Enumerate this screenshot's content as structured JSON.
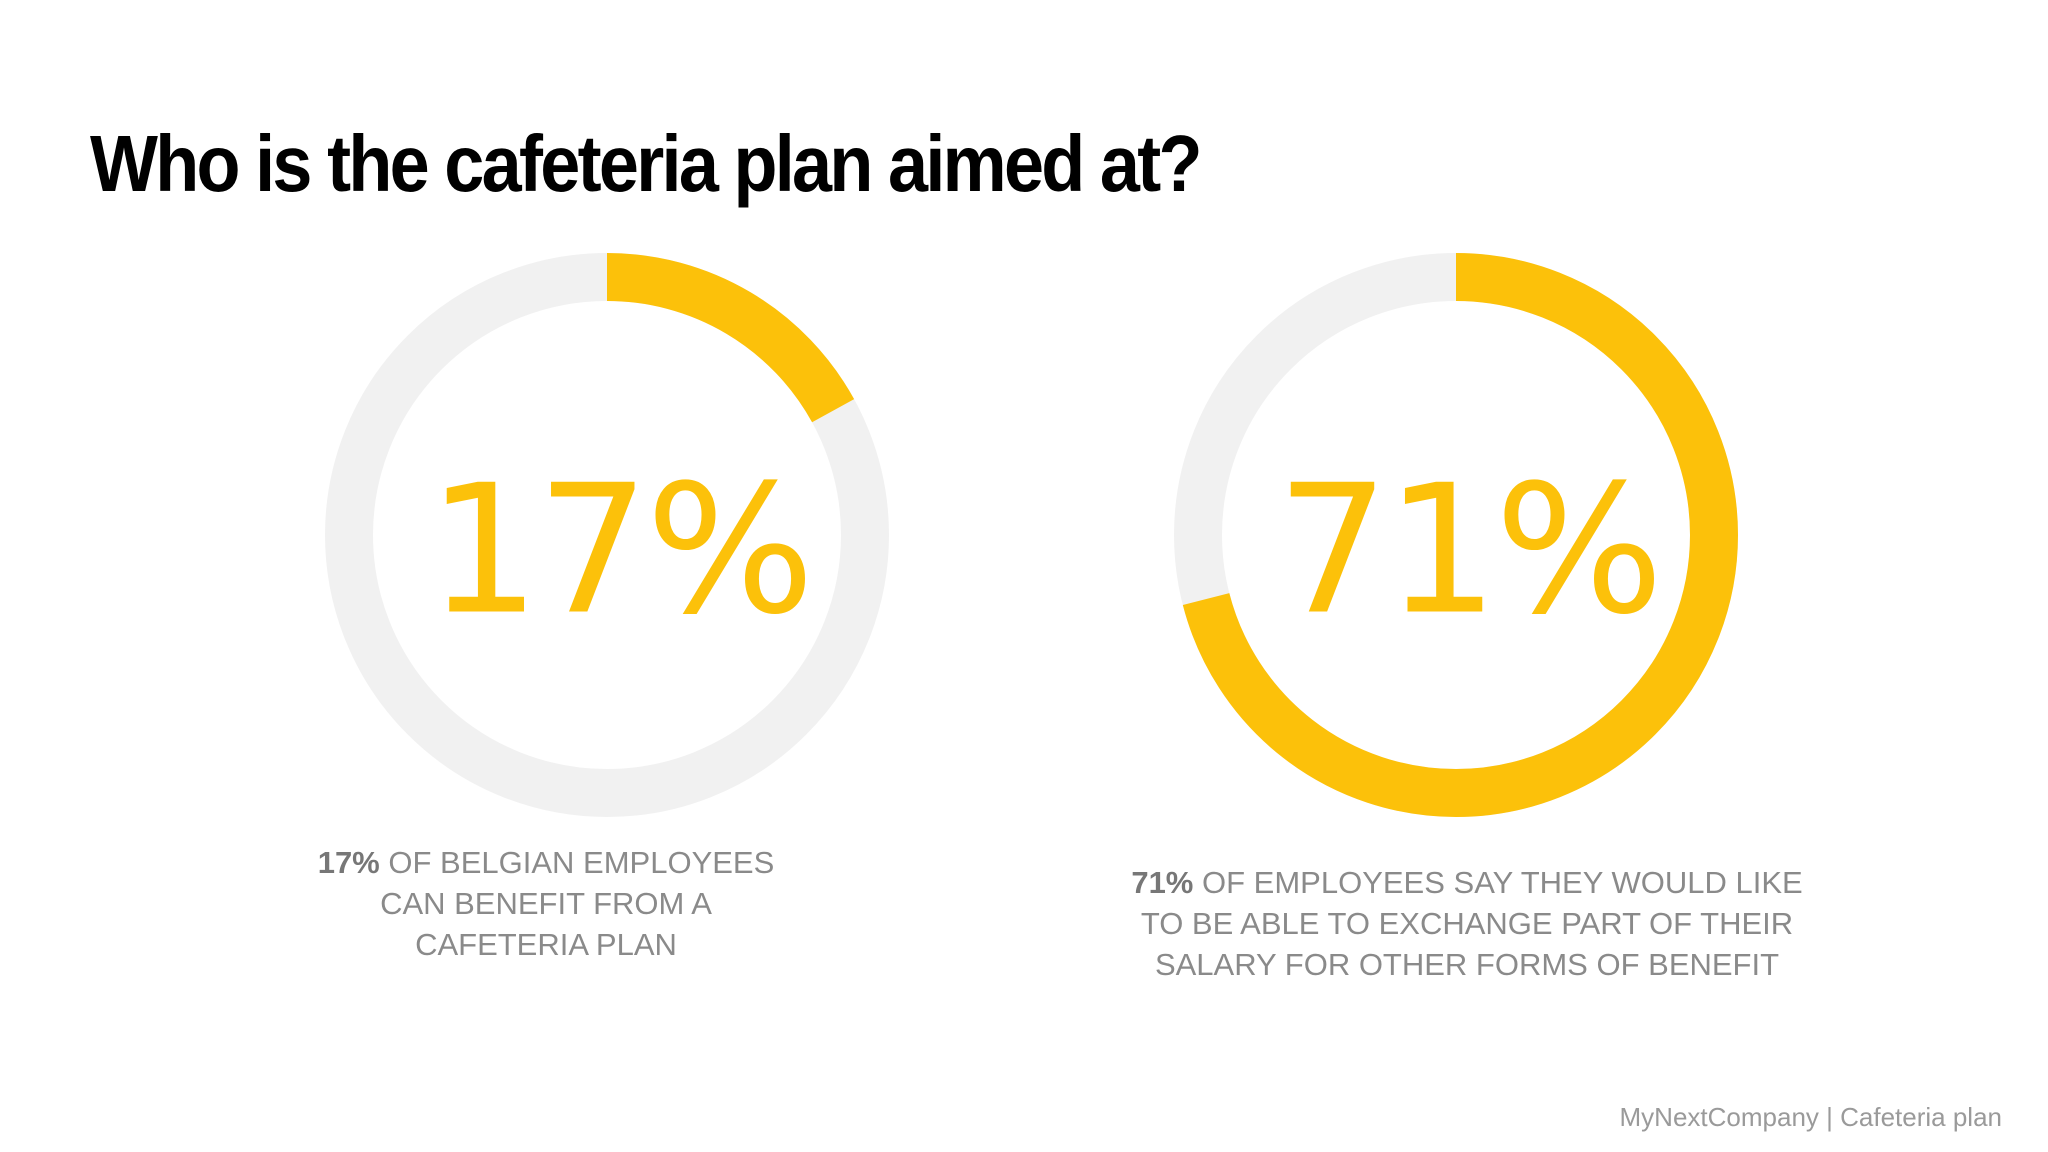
{
  "title": "Who is the cafeteria plan aimed at?",
  "chart_data": [
    {
      "type": "donut",
      "value": 17,
      "value_label": "17%",
      "color": "#fcc10a",
      "track_color": "#f1f1f1",
      "caption": "OF BELGIAN EMPLOYEES CAN BENEFIT FROM A CAFETERIA PLAN"
    },
    {
      "type": "donut",
      "value": 71,
      "value_label": "71%",
      "color": "#fcc10a",
      "track_color": "#f1f1f1",
      "caption": "OF EMPLOYEES SAY THEY WOULD LIKE TO BE ABLE TO EXCHANGE PART OF THEIR SALARY FOR OTHER FORMS OF BENEFIT"
    }
  ],
  "footer": "MyNextCompany | Cafeteria plan"
}
